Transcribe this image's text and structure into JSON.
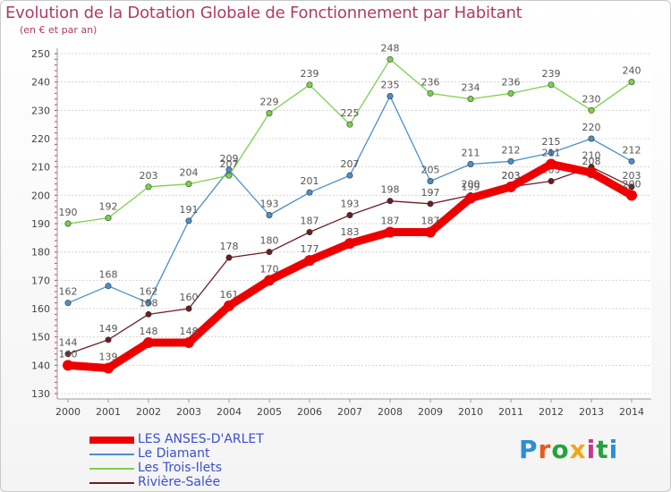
{
  "title": "Evolution de la Dotation Globale de Fonctionnement par Habitant",
  "subtitle": "(en € et par an)",
  "logo": {
    "text": "Proxiti",
    "colors": [
      "#2b8fd6",
      "#e85a1b",
      "#27a23c",
      "#f2a51a",
      "#c23a8a",
      "#27a23c",
      "#2b8fd6"
    ]
  },
  "chart_data": {
    "type": "line",
    "x": [
      "2000",
      "2001",
      "2002",
      "2003",
      "2004",
      "2005",
      "2006",
      "2007",
      "2008",
      "2009",
      "2010",
      "2011",
      "2012",
      "2013",
      "2014"
    ],
    "ylim": [
      130,
      250
    ],
    "yticks": [
      130,
      140,
      150,
      160,
      170,
      180,
      190,
      200,
      210,
      220,
      230,
      240,
      250
    ],
    "grid": true,
    "legend_position": "bottom-left",
    "series": [
      {
        "name": "LES ANSES-D'ARLET",
        "color": "#ee0000",
        "values": [
          140,
          139,
          148,
          148,
          161,
          170,
          177,
          183,
          187,
          187,
          199,
          203,
          211,
          208,
          200
        ],
        "bold": true
      },
      {
        "name": "Le Diamant",
        "color": "#4a90c8",
        "values": [
          162,
          168,
          162,
          191,
          209,
          193,
          201,
          207,
          235,
          205,
          211,
          212,
          215,
          220,
          212
        ]
      },
      {
        "name": "Les Trois-Ilets",
        "color": "#7bd14a",
        "values": [
          190,
          192,
          203,
          204,
          207,
          229,
          239,
          225,
          248,
          236,
          234,
          236,
          239,
          230,
          240
        ]
      },
      {
        "name": "Rivière-Salée",
        "color": "#6b1d24",
        "values": [
          144,
          149,
          158,
          160,
          178,
          180,
          187,
          193,
          198,
          197,
          200,
          203,
          205,
          210,
          203
        ]
      }
    ]
  }
}
